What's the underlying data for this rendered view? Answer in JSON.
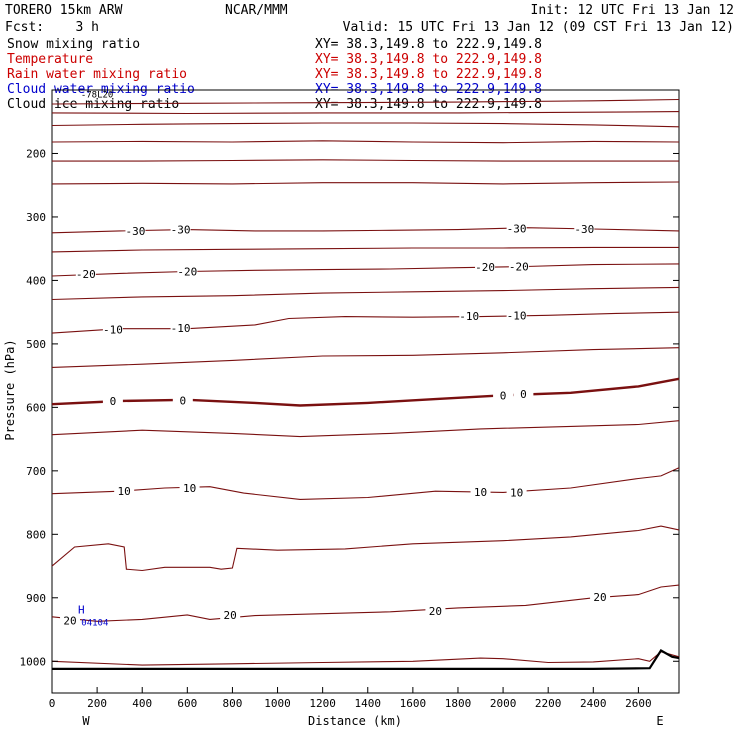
{
  "header": {
    "model": "TORERO  15km ARW",
    "org": "NCAR/MMM",
    "init": "Init: 12 UTC Fri 13 Jan 12",
    "fcst": "Fcst:    3 h",
    "valid": "Valid: 15 UTC Fri 13 Jan 12 (09 CST Fri 13 Jan 12)"
  },
  "fields": [
    {
      "label": "Snow mixing ratio",
      "xy": "XY=  38.3,149.8 to 222.9,149.8",
      "color": "#000000"
    },
    {
      "label": "Temperature",
      "xy": "XY=  38.3,149.8 to 222.9,149.8",
      "color": "#cc0000"
    },
    {
      "label": "Rain water mixing ratio",
      "xy": "XY=  38.3,149.8 to 222.9,149.8",
      "color": "#cc0000"
    },
    {
      "label": "Cloud water mixing ratio",
      "xy": "XY=  38.3,149.8 to 222.9,149.8",
      "color": "#0000cc"
    },
    {
      "label": "Cloud ice mixing ratio",
      "xy": "XY=  38.3,149.8 to 222.9,149.8",
      "color": "#000000"
    }
  ],
  "chart_data": {
    "type": "line",
    "xlabel": "Distance (km)",
    "ylabel": "Pressure (hPa)",
    "xlim": [
      0,
      2780
    ],
    "ylim": [
      100,
      1050
    ],
    "y_scale": "linear-inverted",
    "xticks": [
      0,
      200,
      400,
      600,
      800,
      1000,
      1200,
      1400,
      1600,
      1800,
      2000,
      2200,
      2400,
      2600
    ],
    "yticks": [
      200,
      300,
      400,
      500,
      600,
      700,
      800,
      900,
      1000
    ],
    "x_end_labels": {
      "left": "W",
      "right": "E"
    },
    "contour_color": "#7a1010",
    "isotherms": [
      {
        "value": -60,
        "label": "",
        "points": [
          [
            0,
            122
          ],
          [
            600,
            121
          ],
          [
            1200,
            120
          ],
          [
            1800,
            119
          ],
          [
            2400,
            117
          ],
          [
            2780,
            115
          ]
        ]
      },
      {
        "value": -55,
        "label": "",
        "points": [
          [
            0,
            136
          ],
          [
            600,
            137
          ],
          [
            1200,
            136
          ],
          [
            1800,
            136
          ],
          [
            2400,
            135
          ],
          [
            2780,
            134
          ]
        ]
      },
      {
        "value": -50,
        "label": "",
        "points": [
          [
            0,
            156
          ],
          [
            400,
            154
          ],
          [
            800,
            153
          ],
          [
            1200,
            152
          ],
          [
            1600,
            152
          ],
          [
            2000,
            153
          ],
          [
            2400,
            155
          ],
          [
            2780,
            158
          ]
        ]
      },
      {
        "value": -45,
        "label": "",
        "points": [
          [
            0,
            182
          ],
          [
            400,
            181
          ],
          [
            800,
            182
          ],
          [
            1200,
            180
          ],
          [
            1600,
            182
          ],
          [
            2000,
            183
          ],
          [
            2400,
            181
          ],
          [
            2780,
            182
          ]
        ]
      },
      {
        "value": -40,
        "label": "",
        "points": [
          [
            0,
            212
          ],
          [
            400,
            212
          ],
          [
            800,
            211
          ],
          [
            1200,
            210
          ],
          [
            1600,
            211
          ],
          [
            2000,
            212
          ],
          [
            2400,
            212
          ],
          [
            2780,
            212
          ]
        ]
      },
      {
        "value": -35,
        "label": "",
        "points": [
          [
            0,
            248
          ],
          [
            400,
            247
          ],
          [
            800,
            248
          ],
          [
            1200,
            246
          ],
          [
            1600,
            246
          ],
          [
            2000,
            248
          ],
          [
            2400,
            246
          ],
          [
            2780,
            245
          ]
        ]
      },
      {
        "value": -30,
        "label": "-30",
        "points": [
          [
            0,
            325
          ],
          [
            300,
            322
          ],
          [
            600,
            320
          ],
          [
            900,
            322
          ],
          [
            1200,
            322
          ],
          [
            1500,
            321
          ],
          [
            1800,
            320
          ],
          [
            2100,
            317
          ],
          [
            2400,
            319
          ],
          [
            2780,
            322
          ]
        ]
      },
      {
        "value": -25,
        "label": "",
        "points": [
          [
            0,
            355
          ],
          [
            400,
            352
          ],
          [
            800,
            351
          ],
          [
            1200,
            350
          ],
          [
            1600,
            349
          ],
          [
            2000,
            349
          ],
          [
            2400,
            348
          ],
          [
            2780,
            348
          ]
        ]
      },
      {
        "value": -20,
        "label": "-20",
        "points": [
          [
            0,
            393
          ],
          [
            300,
            389
          ],
          [
            600,
            386
          ],
          [
            900,
            384
          ],
          [
            1200,
            383
          ],
          [
            1500,
            382
          ],
          [
            1800,
            380
          ],
          [
            2100,
            378
          ],
          [
            2400,
            375
          ],
          [
            2780,
            374
          ]
        ]
      },
      {
        "value": -15,
        "label": "",
        "points": [
          [
            0,
            430
          ],
          [
            400,
            426
          ],
          [
            800,
            424
          ],
          [
            1200,
            420
          ],
          [
            1600,
            418
          ],
          [
            2000,
            416
          ],
          [
            2400,
            413
          ],
          [
            2780,
            411
          ]
        ]
      },
      {
        "value": -10,
        "label": "-10",
        "points": [
          [
            0,
            483
          ],
          [
            300,
            476
          ],
          [
            600,
            476
          ],
          [
            900,
            470
          ],
          [
            1050,
            460
          ],
          [
            1300,
            457
          ],
          [
            1600,
            458
          ],
          [
            1900,
            457
          ],
          [
            2200,
            455
          ],
          [
            2500,
            452
          ],
          [
            2780,
            450
          ]
        ]
      },
      {
        "value": -5,
        "label": "",
        "points": [
          [
            0,
            537
          ],
          [
            400,
            532
          ],
          [
            800,
            526
          ],
          [
            1200,
            519
          ],
          [
            1600,
            518
          ],
          [
            2000,
            514
          ],
          [
            2400,
            509
          ],
          [
            2780,
            506
          ]
        ]
      },
      {
        "value": 0,
        "label": "0",
        "bold": true,
        "points": [
          [
            0,
            595
          ],
          [
            300,
            590
          ],
          [
            600,
            588
          ],
          [
            900,
            593
          ],
          [
            1100,
            597
          ],
          [
            1400,
            593
          ],
          [
            1700,
            587
          ],
          [
            2000,
            581
          ],
          [
            2300,
            577
          ],
          [
            2600,
            567
          ],
          [
            2780,
            555
          ]
        ]
      },
      {
        "value": 5,
        "label": "",
        "points": [
          [
            0,
            643
          ],
          [
            400,
            636
          ],
          [
            800,
            641
          ],
          [
            1100,
            646
          ],
          [
            1500,
            641
          ],
          [
            1900,
            634
          ],
          [
            2300,
            630
          ],
          [
            2600,
            627
          ],
          [
            2780,
            621
          ]
        ]
      },
      {
        "value": 10,
        "label": "10",
        "points": [
          [
            0,
            736
          ],
          [
            300,
            732
          ],
          [
            500,
            727
          ],
          [
            700,
            725
          ],
          [
            850,
            735
          ],
          [
            1100,
            745
          ],
          [
            1400,
            742
          ],
          [
            1700,
            732
          ],
          [
            2000,
            734
          ],
          [
            2300,
            727
          ],
          [
            2600,
            712
          ],
          [
            2700,
            708
          ],
          [
            2780,
            695
          ]
        ]
      },
      {
        "value": 15,
        "label": "",
        "points": [
          [
            0,
            850
          ],
          [
            100,
            820
          ],
          [
            250,
            815
          ],
          [
            320,
            820
          ],
          [
            330,
            855
          ],
          [
            400,
            857
          ],
          [
            500,
            852
          ],
          [
            700,
            852
          ],
          [
            750,
            855
          ],
          [
            800,
            853
          ],
          [
            820,
            822
          ],
          [
            1000,
            825
          ],
          [
            1300,
            823
          ],
          [
            1600,
            815
          ],
          [
            2000,
            810
          ],
          [
            2300,
            804
          ],
          [
            2600,
            794
          ],
          [
            2700,
            787
          ],
          [
            2780,
            793
          ]
        ]
      },
      {
        "value": 20,
        "label": "20",
        "points": [
          [
            0,
            930
          ],
          [
            200,
            937
          ],
          [
            400,
            934
          ],
          [
            600,
            927
          ],
          [
            700,
            934
          ],
          [
            900,
            928
          ],
          [
            1200,
            925
          ],
          [
            1500,
            922
          ],
          [
            1800,
            916
          ],
          [
            2100,
            912
          ],
          [
            2400,
            900
          ],
          [
            2600,
            895
          ],
          [
            2700,
            883
          ],
          [
            2780,
            880
          ]
        ]
      },
      {
        "value": 25,
        "label": "",
        "points": [
          [
            0,
            1000
          ],
          [
            400,
            1006
          ],
          [
            800,
            1004
          ],
          [
            1200,
            1002
          ],
          [
            1600,
            1000
          ],
          [
            1900,
            995
          ],
          [
            2000,
            996
          ],
          [
            2200,
            1002
          ],
          [
            2400,
            1001
          ],
          [
            2600,
            996
          ],
          [
            2650,
            1000
          ],
          [
            2700,
            985
          ],
          [
            2780,
            993
          ]
        ]
      }
    ],
    "terrain": [
      [
        0,
        1012
      ],
      [
        400,
        1012
      ],
      [
        800,
        1012
      ],
      [
        1200,
        1012
      ],
      [
        1600,
        1012
      ],
      [
        2000,
        1012
      ],
      [
        2400,
        1012
      ],
      [
        2650,
        1011
      ],
      [
        2700,
        983
      ],
      [
        2750,
        993
      ],
      [
        2780,
        995
      ]
    ],
    "labels": [
      {
        "text": "-30",
        "x": 370,
        "y": 322
      },
      {
        "text": "-30",
        "x": 570,
        "y": 320
      },
      {
        "text": "-30",
        "x": 2060,
        "y": 318
      },
      {
        "text": "-30",
        "x": 2360,
        "y": 319
      },
      {
        "text": "-20",
        "x": 150,
        "y": 390
      },
      {
        "text": "-20",
        "x": 600,
        "y": 386
      },
      {
        "text": "-20",
        "x": 1920,
        "y": 379
      },
      {
        "text": "-20",
        "x": 2070,
        "y": 378
      },
      {
        "text": "-10",
        "x": 270,
        "y": 477
      },
      {
        "text": "-10",
        "x": 570,
        "y": 475
      },
      {
        "text": "-10",
        "x": 1850,
        "y": 456
      },
      {
        "text": "-10",
        "x": 2060,
        "y": 455
      },
      {
        "text": "0",
        "x": 270,
        "y": 590
      },
      {
        "text": "0",
        "x": 580,
        "y": 589
      },
      {
        "text": "0",
        "x": 2000,
        "y": 581
      },
      {
        "text": "0",
        "x": 2090,
        "y": 579
      },
      {
        "text": "10",
        "x": 320,
        "y": 732
      },
      {
        "text": "10",
        "x": 610,
        "y": 727
      },
      {
        "text": "10",
        "x": 1900,
        "y": 733
      },
      {
        "text": "10",
        "x": 2060,
        "y": 734
      },
      {
        "text": "20",
        "x": 80,
        "y": 936
      },
      {
        "text": "20",
        "x": 790,
        "y": 927
      },
      {
        "text": "20",
        "x": 1700,
        "y": 921
      },
      {
        "text": "20",
        "x": 2430,
        "y": 899
      }
    ],
    "annotations": [
      {
        "text": "H",
        "x": 130,
        "y": 925,
        "color": "#0000cc"
      },
      {
        "text": "04104",
        "x": 190,
        "y": 944,
        "color": "#0000cc"
      },
      {
        "text": "-78L20",
        "x": 200,
        "y": 112,
        "color": "#000000"
      }
    ]
  }
}
